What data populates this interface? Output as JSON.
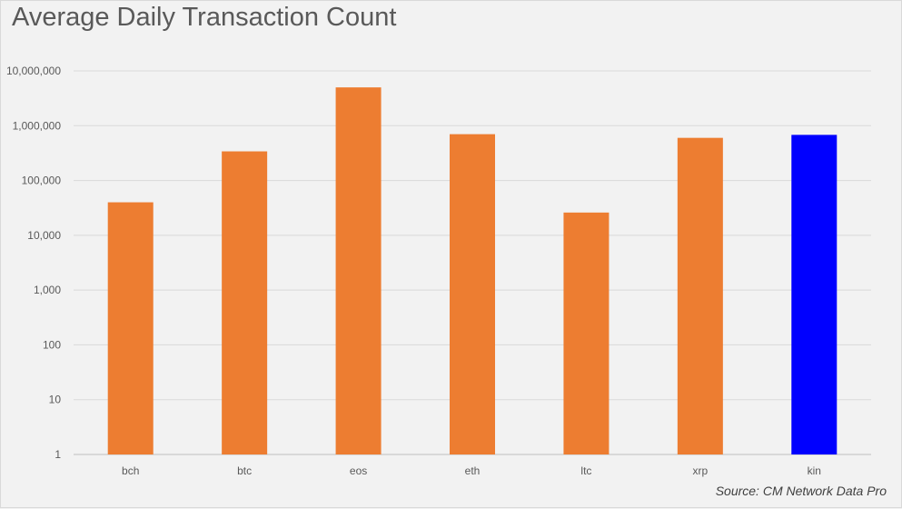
{
  "chart_data": {
    "type": "bar",
    "title": "Average Daily Transaction Count",
    "xlabel": "",
    "ylabel": "",
    "yscale": "log",
    "ylim": [
      1,
      10000000
    ],
    "yticks": [
      1,
      10,
      100,
      1000,
      10000,
      100000,
      1000000,
      10000000
    ],
    "ytick_labels": [
      "1",
      "10",
      "100",
      "1,000",
      "10,000",
      "100,000",
      "1,000,000",
      "10,000,000"
    ],
    "categories": [
      "bch",
      "btc",
      "eos",
      "eth",
      "ltc",
      "xrp",
      "kin"
    ],
    "values": [
      40000,
      340000,
      5000000,
      700000,
      26000,
      600000,
      680000
    ],
    "colors": [
      "#ed7d31",
      "#ed7d31",
      "#ed7d31",
      "#ed7d31",
      "#ed7d31",
      "#ed7d31",
      "#0000ff"
    ],
    "grid": true,
    "legend": "none",
    "source": "Source: CM Network Data Pro"
  }
}
